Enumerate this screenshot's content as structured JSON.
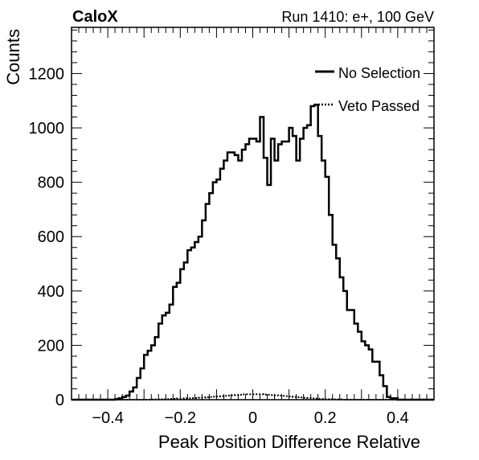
{
  "header": {
    "left": "CaloX",
    "right": "Run 1410: e+, 100 GeV"
  },
  "chart_data": {
    "type": "line",
    "style": "step-histogram",
    "title": "",
    "xlabel": "Peak Position Difference Relative",
    "ylabel": "Counts",
    "xlim": [
      -0.5,
      0.5
    ],
    "ylim": [
      0,
      1370
    ],
    "x_ticks": [
      -0.4,
      -0.2,
      0,
      0.2,
      0.4
    ],
    "x_tick_labels": [
      "−0.4",
      "−0.2",
      "0",
      "0.2",
      "0.4"
    ],
    "y_ticks": [
      0,
      200,
      400,
      600,
      800,
      1000,
      1200
    ],
    "y_tick_labels": [
      "0",
      "200",
      "400",
      "600",
      "800",
      "1000",
      "1200"
    ],
    "grid": false,
    "legend_position": "top-right",
    "bin_width": 0.01,
    "x": [
      -0.495,
      -0.485,
      -0.475,
      -0.465,
      -0.455,
      -0.445,
      -0.435,
      -0.425,
      -0.415,
      -0.405,
      -0.395,
      -0.385,
      -0.375,
      -0.365,
      -0.355,
      -0.345,
      -0.335,
      -0.325,
      -0.315,
      -0.305,
      -0.295,
      -0.285,
      -0.275,
      -0.265,
      -0.255,
      -0.245,
      -0.235,
      -0.225,
      -0.215,
      -0.205,
      -0.195,
      -0.185,
      -0.175,
      -0.165,
      -0.155,
      -0.145,
      -0.135,
      -0.125,
      -0.115,
      -0.105,
      -0.095,
      -0.085,
      -0.075,
      -0.065,
      -0.055,
      -0.045,
      -0.035,
      -0.025,
      -0.015,
      -0.005,
      0.005,
      0.015,
      0.025,
      0.035,
      0.045,
      0.055,
      0.065,
      0.075,
      0.085,
      0.095,
      0.105,
      0.115,
      0.125,
      0.135,
      0.145,
      0.155,
      0.165,
      0.175,
      0.185,
      0.195,
      0.205,
      0.215,
      0.225,
      0.235,
      0.245,
      0.255,
      0.265,
      0.275,
      0.285,
      0.295,
      0.305,
      0.315,
      0.325,
      0.335,
      0.345,
      0.355,
      0.365,
      0.375,
      0.385,
      0.395,
      0.405,
      0.415,
      0.425,
      0.435,
      0.445,
      0.455,
      0.465,
      0.475,
      0.485,
      0.495
    ],
    "series": [
      {
        "name": "No Selection",
        "line_style": "solid",
        "color": "#000000",
        "values": [
          0,
          0,
          0,
          0,
          0,
          0,
          0,
          0,
          0,
          0,
          0,
          0,
          2,
          5,
          10,
          15,
          30,
          45,
          80,
          115,
          165,
          180,
          200,
          230,
          280,
          310,
          320,
          350,
          415,
          430,
          480,
          505,
          550,
          560,
          580,
          600,
          660,
          720,
          760,
          800,
          810,
          850,
          880,
          910,
          910,
          900,
          880,
          920,
          940,
          960,
          960,
          950,
          1040,
          890,
          790,
          960,
          880,
          940,
          950,
          950,
          1000,
          970,
          880,
          960,
          1000,
          1010,
          1080,
          1085,
          970,
          880,
          820,
          680,
          570,
          520,
          450,
          400,
          330,
          330,
          280,
          250,
          215,
          200,
          185,
          140,
          140,
          90,
          50,
          10,
          5,
          5,
          0,
          0,
          0,
          0,
          0,
          0,
          0,
          0,
          0,
          0
        ]
      },
      {
        "name": "Veto Passed",
        "line_style": "dotted",
        "color": "#000000",
        "values": [
          0,
          0,
          0,
          0,
          0,
          0,
          0,
          0,
          0,
          0,
          0,
          0,
          0,
          0,
          0,
          0,
          0,
          0,
          0,
          0,
          0,
          0,
          1,
          1,
          1,
          2,
          2,
          3,
          3,
          4,
          4,
          5,
          5,
          6,
          6,
          7,
          8,
          9,
          10,
          11,
          12,
          13,
          14,
          15,
          16,
          17,
          18,
          20,
          20,
          20,
          20,
          20,
          20,
          19,
          18,
          17,
          16,
          15,
          14,
          13,
          12,
          10,
          9,
          8,
          7,
          6,
          5,
          4,
          3,
          3,
          2,
          2,
          1,
          1,
          1,
          0,
          0,
          0,
          0,
          0,
          0,
          0,
          0,
          0,
          0,
          0,
          0,
          0,
          0,
          0,
          0,
          0,
          0,
          0,
          0,
          0,
          0,
          0,
          0,
          0
        ]
      }
    ]
  }
}
